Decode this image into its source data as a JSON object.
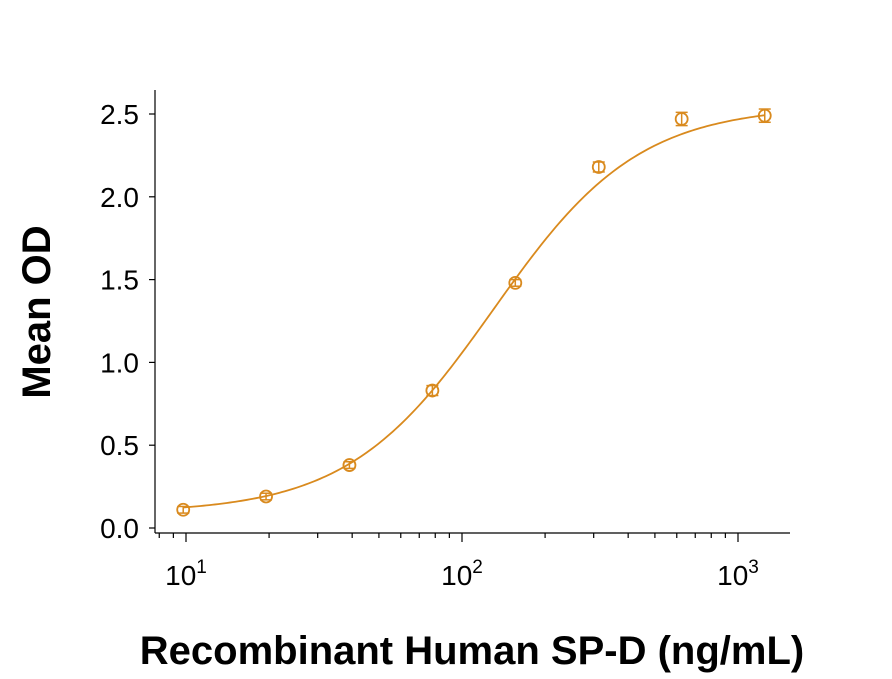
{
  "chart_data": {
    "type": "line",
    "title": "",
    "xlabel": "Recombinant Human SP-D (ng/mL)",
    "ylabel": "Mean OD",
    "xscale": "log",
    "xlim": [
      8,
      2000
    ],
    "ylim": [
      0,
      2.6
    ],
    "x_ticks": [
      {
        "value": 10,
        "base": "10",
        "exp": "1"
      },
      {
        "value": 100,
        "base": "10",
        "exp": "2"
      },
      {
        "value": 1000,
        "base": "10",
        "exp": "3"
      }
    ],
    "y_ticks": [
      {
        "value": 0.0,
        "label": "0.0"
      },
      {
        "value": 0.5,
        "label": "0.5"
      },
      {
        "value": 1.0,
        "label": "1.0"
      },
      {
        "value": 1.5,
        "label": "1.5"
      },
      {
        "value": 2.0,
        "label": "2.0"
      },
      {
        "value": 2.5,
        "label": "2.5"
      }
    ],
    "grid": false,
    "legend": "none",
    "series": [
      {
        "color": "#D98A1E",
        "x": [
          9.77,
          19.5,
          39.1,
          78.1,
          156,
          313,
          625,
          1250
        ],
        "y": [
          0.11,
          0.19,
          0.38,
          0.83,
          1.48,
          2.18,
          2.47,
          2.49
        ],
        "error": [
          0.02,
          0.02,
          0.02,
          0.03,
          0.02,
          0.03,
          0.04,
          0.04
        ],
        "fit": {
          "model": "4PL",
          "bottom": 0.09,
          "top": 2.55,
          "ec50": 130,
          "hill": 1.65
        }
      }
    ]
  }
}
